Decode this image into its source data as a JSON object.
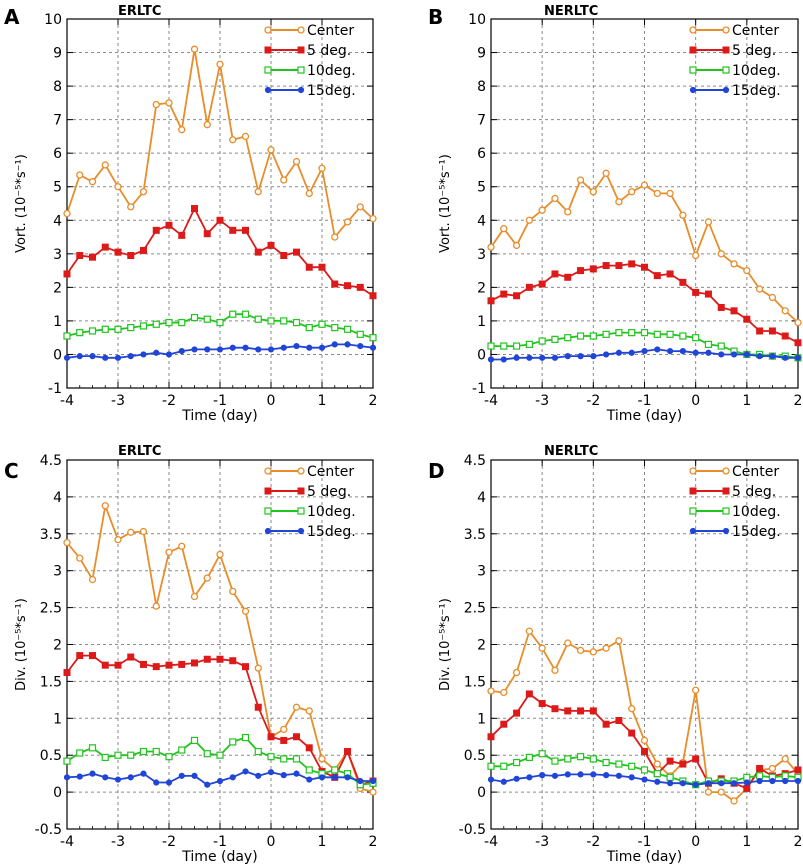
{
  "figure": {
    "x_ticks": [
      "-4",
      "-3",
      "-2",
      "-1",
      "0",
      "1",
      "2"
    ]
  },
  "chart_data": [
    {
      "panel_letter": "A",
      "title": "ERLTC",
      "type": "line",
      "xlabel": "Time (day)",
      "ylabel": "Vort. (10⁻⁵*s⁻¹)",
      "xlim": [
        -4,
        2
      ],
      "ylim": [
        -1,
        10
      ],
      "yticks": [
        "-1",
        "0",
        "1",
        "2",
        "3",
        "4",
        "5",
        "6",
        "7",
        "8",
        "9",
        "10"
      ],
      "grid": true,
      "legend_position": "top-right",
      "x": [
        -4,
        -3.75,
        -3.5,
        -3.25,
        -3,
        -2.75,
        -2.5,
        -2.25,
        -2,
        -1.75,
        -1.5,
        -1.25,
        -1,
        -0.75,
        -0.5,
        -0.25,
        0,
        0.25,
        0.5,
        0.75,
        1,
        1.25,
        1.5,
        1.75,
        2
      ],
      "series": [
        {
          "name": "Center",
          "color": "#e88d2a",
          "marker": "circle",
          "values": [
            4.2,
            5.35,
            5.15,
            5.65,
            5.0,
            4.4,
            4.85,
            7.45,
            7.5,
            6.7,
            9.1,
            6.85,
            8.65,
            6.4,
            6.5,
            4.85,
            6.1,
            5.2,
            5.75,
            4.8,
            5.55,
            3.5,
            3.95,
            4.4,
            4.05
          ]
        },
        {
          "name": "5 deg.",
          "color": "#dd1a1a",
          "marker": "square-filled",
          "values": [
            2.4,
            2.95,
            2.9,
            3.2,
            3.05,
            2.95,
            3.1,
            3.7,
            3.85,
            3.55,
            4.35,
            3.6,
            4.0,
            3.7,
            3.7,
            3.05,
            3.25,
            2.95,
            3.05,
            2.6,
            2.6,
            2.1,
            2.05,
            2.0,
            1.75
          ]
        },
        {
          "name": "10deg.",
          "color": "#22c41f",
          "marker": "square-open",
          "values": [
            0.55,
            0.65,
            0.7,
            0.75,
            0.75,
            0.8,
            0.85,
            0.9,
            0.95,
            0.95,
            1.1,
            1.05,
            0.95,
            1.2,
            1.2,
            1.05,
            1.0,
            1.0,
            0.95,
            0.8,
            0.9,
            0.8,
            0.75,
            0.6,
            0.5
          ]
        },
        {
          "name": "15deg.",
          "color": "#2145d6",
          "marker": "dot",
          "values": [
            -0.1,
            -0.05,
            -0.05,
            -0.1,
            -0.1,
            -0.05,
            0.0,
            0.05,
            0.0,
            0.1,
            0.15,
            0.15,
            0.15,
            0.2,
            0.2,
            0.15,
            0.15,
            0.2,
            0.25,
            0.2,
            0.2,
            0.3,
            0.3,
            0.25,
            0.2
          ]
        }
      ]
    },
    {
      "panel_letter": "B",
      "title": "NERLTC",
      "type": "line",
      "xlabel": "Time (day)",
      "ylabel": "Vort. (10⁻⁵*s⁻¹)",
      "xlim": [
        -4,
        2
      ],
      "ylim": [
        -1,
        10
      ],
      "yticks": [
        "-1",
        "0",
        "1",
        "2",
        "3",
        "4",
        "5",
        "6",
        "7",
        "8",
        "9",
        "10"
      ],
      "grid": true,
      "legend_position": "top-right",
      "x": [
        -4,
        -3.75,
        -3.5,
        -3.25,
        -3,
        -2.75,
        -2.5,
        -2.25,
        -2,
        -1.75,
        -1.5,
        -1.25,
        -1,
        -0.75,
        -0.5,
        -0.25,
        0,
        0.25,
        0.5,
        0.75,
        1,
        1.25,
        1.5,
        1.75,
        2
      ],
      "series": [
        {
          "name": "Center",
          "color": "#e88d2a",
          "marker": "circle",
          "values": [
            3.2,
            3.75,
            3.25,
            4.0,
            4.3,
            4.65,
            4.25,
            5.2,
            4.85,
            5.4,
            4.55,
            4.85,
            5.05,
            4.8,
            4.8,
            4.15,
            2.95,
            3.95,
            3.0,
            2.7,
            2.5,
            1.95,
            1.7,
            1.3,
            0.95
          ]
        },
        {
          "name": "5 deg.",
          "color": "#dd1a1a",
          "marker": "square-filled",
          "values": [
            1.6,
            1.8,
            1.75,
            2.0,
            2.1,
            2.4,
            2.3,
            2.5,
            2.55,
            2.65,
            2.65,
            2.7,
            2.6,
            2.35,
            2.4,
            2.15,
            1.85,
            1.8,
            1.4,
            1.3,
            1.05,
            0.7,
            0.7,
            0.55,
            0.35
          ]
        },
        {
          "name": "10deg.",
          "color": "#22c41f",
          "marker": "square-open",
          "values": [
            0.25,
            0.25,
            0.25,
            0.3,
            0.4,
            0.45,
            0.5,
            0.55,
            0.55,
            0.6,
            0.65,
            0.65,
            0.65,
            0.6,
            0.6,
            0.55,
            0.5,
            0.3,
            0.25,
            0.1,
            0.0,
            0.0,
            -0.05,
            -0.05,
            -0.1
          ]
        },
        {
          "name": "15deg.",
          "color": "#2145d6",
          "marker": "dot",
          "values": [
            -0.15,
            -0.15,
            -0.1,
            -0.1,
            -0.1,
            -0.1,
            -0.05,
            -0.05,
            -0.05,
            0.0,
            0.05,
            0.05,
            0.1,
            0.15,
            0.1,
            0.1,
            0.05,
            0.05,
            0.0,
            0.0,
            0.0,
            -0.05,
            -0.05,
            -0.1,
            -0.1
          ]
        }
      ]
    },
    {
      "panel_letter": "C",
      "title": "ERLTC",
      "type": "line",
      "xlabel": "Time (day)",
      "ylabel": "Div. (10⁻⁵*s⁻¹)",
      "xlim": [
        -4,
        2
      ],
      "ylim": [
        -0.5,
        4.5
      ],
      "yticks": [
        "-0.5",
        "0",
        "0.5",
        "1",
        "1.5",
        "2",
        "2.5",
        "3",
        "3.5",
        "4",
        "4.5"
      ],
      "grid": true,
      "legend_position": "top-right",
      "x": [
        -4,
        -3.75,
        -3.5,
        -3.25,
        -3,
        -2.75,
        -2.5,
        -2.25,
        -2,
        -1.75,
        -1.5,
        -1.25,
        -1,
        -0.75,
        -0.5,
        -0.25,
        0,
        0.25,
        0.5,
        0.75,
        1,
        1.25,
        1.5,
        1.75,
        2
      ],
      "series": [
        {
          "name": "Center",
          "color": "#e88d2a",
          "marker": "circle",
          "values": [
            3.38,
            3.17,
            2.88,
            3.88,
            3.42,
            3.52,
            3.53,
            2.52,
            3.25,
            3.33,
            2.65,
            2.9,
            3.22,
            2.72,
            2.45,
            1.68,
            0.75,
            0.85,
            1.15,
            1.1,
            0.45,
            0.3,
            0.55,
            0.05,
            0.0
          ]
        },
        {
          "name": "5 deg.",
          "color": "#dd1a1a",
          "marker": "square-filled",
          "values": [
            1.62,
            1.85,
            1.85,
            1.72,
            1.72,
            1.83,
            1.73,
            1.7,
            1.72,
            1.73,
            1.75,
            1.8,
            1.8,
            1.78,
            1.7,
            1.15,
            0.75,
            0.7,
            0.75,
            0.6,
            0.28,
            0.2,
            0.55,
            0.1,
            0.15
          ]
        },
        {
          "name": "10deg.",
          "color": "#22c41f",
          "marker": "square-open",
          "values": [
            0.42,
            0.53,
            0.6,
            0.47,
            0.5,
            0.5,
            0.55,
            0.55,
            0.48,
            0.57,
            0.7,
            0.52,
            0.5,
            0.68,
            0.74,
            0.55,
            0.48,
            0.45,
            0.45,
            0.3,
            0.25,
            0.3,
            0.25,
            0.1,
            0.12
          ]
        },
        {
          "name": "15deg.",
          "color": "#2145d6",
          "marker": "dot",
          "values": [
            0.2,
            0.21,
            0.25,
            0.2,
            0.17,
            0.2,
            0.25,
            0.13,
            0.13,
            0.22,
            0.22,
            0.1,
            0.15,
            0.2,
            0.28,
            0.22,
            0.27,
            0.23,
            0.25,
            0.17,
            0.2,
            0.2,
            0.2,
            0.15,
            0.15
          ]
        }
      ]
    },
    {
      "panel_letter": "D",
      "title": "NERLTC",
      "type": "line",
      "xlabel": "Time (day)",
      "ylabel": "Div. (10⁻⁵*s⁻¹)",
      "xlim": [
        -4,
        2
      ],
      "ylim": [
        -0.5,
        4.5
      ],
      "yticks": [
        "-0.5",
        "0",
        "0.5",
        "1",
        "1.5",
        "2",
        "2.5",
        "3",
        "3.5",
        "4",
        "4.5"
      ],
      "grid": true,
      "legend_position": "top-right",
      "x": [
        -4,
        -3.75,
        -3.5,
        -3.25,
        -3,
        -2.75,
        -2.5,
        -2.25,
        -2,
        -1.75,
        -1.5,
        -1.25,
        -1,
        -0.75,
        -0.5,
        -0.25,
        0,
        0.25,
        0.5,
        0.75,
        1,
        1.25,
        1.5,
        1.75,
        2
      ],
      "series": [
        {
          "name": "Center",
          "color": "#e88d2a",
          "marker": "circle",
          "values": [
            1.37,
            1.35,
            1.62,
            2.18,
            1.95,
            1.65,
            2.02,
            1.92,
            1.9,
            1.95,
            2.05,
            1.13,
            0.7,
            0.38,
            0.22,
            0.4,
            1.38,
            0.0,
            0.0,
            -0.12,
            0.05,
            0.3,
            0.32,
            0.45,
            0.25
          ]
        },
        {
          "name": "5 deg.",
          "color": "#dd1a1a",
          "marker": "square-filled",
          "values": [
            0.75,
            0.92,
            1.07,
            1.33,
            1.2,
            1.13,
            1.1,
            1.1,
            1.1,
            0.92,
            0.97,
            0.8,
            0.55,
            0.25,
            0.42,
            0.38,
            0.45,
            0.12,
            0.18,
            0.12,
            0.05,
            0.32,
            0.22,
            0.25,
            0.3
          ]
        },
        {
          "name": "10deg.",
          "color": "#22c41f",
          "marker": "square-open",
          "values": [
            0.35,
            0.35,
            0.4,
            0.47,
            0.52,
            0.42,
            0.45,
            0.48,
            0.45,
            0.4,
            0.38,
            0.35,
            0.3,
            0.25,
            0.2,
            0.15,
            0.1,
            0.15,
            0.15,
            0.15,
            0.2,
            0.22,
            0.2,
            0.22,
            0.2
          ]
        },
        {
          "name": "15deg.",
          "color": "#2145d6",
          "marker": "dot",
          "values": [
            0.17,
            0.14,
            0.18,
            0.2,
            0.23,
            0.22,
            0.24,
            0.24,
            0.24,
            0.23,
            0.22,
            0.2,
            0.17,
            0.14,
            0.12,
            0.12,
            0.1,
            0.12,
            0.12,
            0.12,
            0.13,
            0.15,
            0.15,
            0.15,
            0.15
          ]
        }
      ]
    }
  ]
}
